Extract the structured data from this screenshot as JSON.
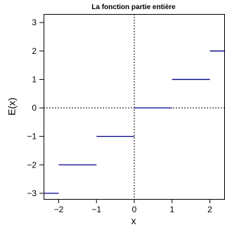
{
  "chart_data": {
    "type": "line",
    "title": "La fonction partie entière",
    "xlabel": "x",
    "ylabel": "E(x)",
    "xlim": [
      -2.4,
      2.4
    ],
    "ylim": [
      -3.2,
      3.3
    ],
    "xticks": [
      -2,
      -1,
      0,
      1,
      2
    ],
    "xtick_labels": [
      "−2",
      "−1",
      "0",
      "1",
      "2"
    ],
    "yticks": [
      -3,
      -2,
      -1,
      0,
      1,
      2,
      3
    ],
    "ytick_labels": [
      "−3",
      "−2",
      "−1",
      "0",
      "1",
      "2",
      "3"
    ],
    "grid": false,
    "reference_lines": {
      "horizontal_at_y": 0,
      "vertical_at_x": 0,
      "style": "dotted"
    },
    "series": [
      {
        "color": "#00008B",
        "segments": [
          {
            "x": [
              -3,
              -2
            ],
            "y": [
              -3,
              -3
            ]
          },
          {
            "x": [
              -2,
              -1
            ],
            "y": [
              -2,
              -2
            ]
          },
          {
            "x": [
              -1,
              0
            ],
            "y": [
              -1,
              -1
            ]
          },
          {
            "x": [
              0,
              1
            ],
            "y": [
              0,
              0
            ]
          },
          {
            "x": [
              1,
              2
            ],
            "y": [
              1,
              1
            ]
          },
          {
            "x": [
              2,
              3
            ],
            "y": [
              2,
              2
            ]
          }
        ]
      }
    ]
  }
}
